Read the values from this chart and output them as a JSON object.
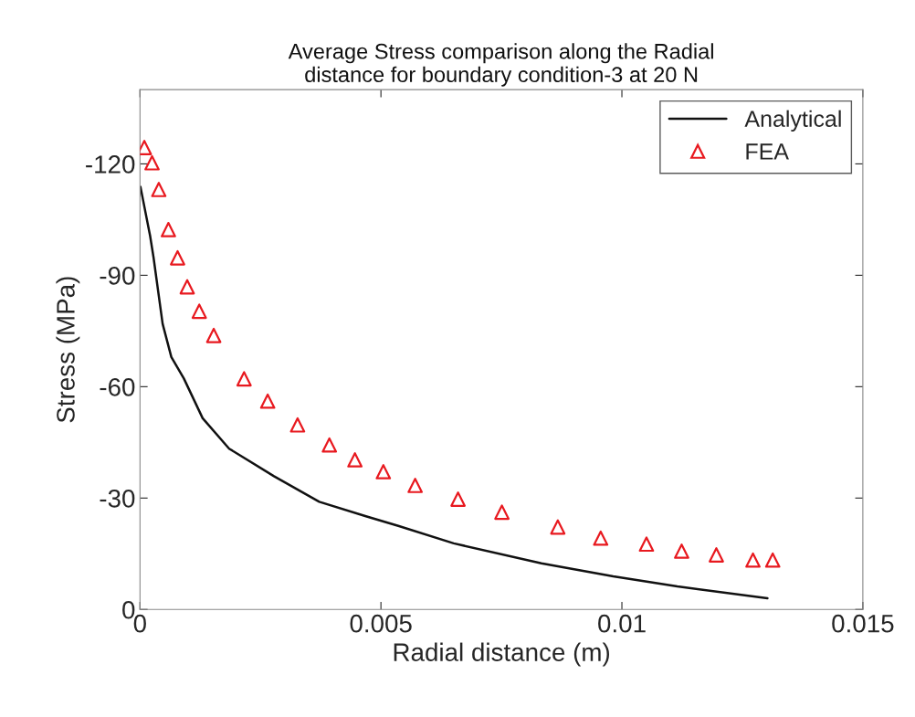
{
  "chart_data": {
    "type": "line",
    "title": "Average Stress comparison along the Radial\ndistance for boundary condition-3 at 20 N",
    "xlabel": "Radial distance (m)",
    "ylabel": "Stress (MPa)",
    "xlim": [
      0,
      0.015
    ],
    "xticks": [
      0,
      0.005,
      0.01,
      0.015
    ],
    "ylim": [
      0,
      -140
    ],
    "yticks": [
      -120,
      -90,
      -60,
      -30,
      0
    ],
    "legend": "top right",
    "series": [
      {
        "name": "Analytical",
        "color": "#111111",
        "marker": "none",
        "line_style": "solid",
        "x": [
          1e-05,
          0.00021,
          0.00028,
          0.00047,
          0.00065,
          0.00091,
          0.0013,
          0.00185,
          0.00278,
          0.00372,
          0.00469,
          0.00536,
          0.00651,
          0.00833,
          0.00982,
          0.01115,
          0.01302
        ],
        "values": [
          -113.8,
          -100.6,
          -94.9,
          -76.9,
          -68,
          -62.2,
          -51.5,
          -43.3,
          -35.9,
          -29.0,
          -25.1,
          -22.5,
          -17.8,
          -12.4,
          -8.9,
          -6.2,
          -3.0
        ]
      },
      {
        "name": "FEA",
        "type": "scatter",
        "color": "#e8191f",
        "marker": "triangle",
        "x": [
          9e-05,
          0.00025,
          0.00039,
          0.00059,
          0.00078,
          0.00098,
          0.00123,
          0.00153,
          0.00216,
          0.00265,
          0.00327,
          0.00393,
          0.00446,
          0.00505,
          0.00571,
          0.0066,
          0.00751,
          0.00867,
          0.00956,
          0.01051,
          0.01124,
          0.01196,
          0.01272,
          0.01313
        ],
        "values": [
          -124.4,
          -120.3,
          -113.1,
          -102.3,
          -94.7,
          -86.9,
          -80.3,
          -73.8,
          -62.1,
          -56.1,
          -49.7,
          -44.3,
          -40.3,
          -37.1,
          -33.4,
          -29.7,
          -26.2,
          -22.2,
          -19.2,
          -17.6,
          -15.7,
          -14.7,
          -13.3,
          -13.3
        ]
      }
    ]
  }
}
